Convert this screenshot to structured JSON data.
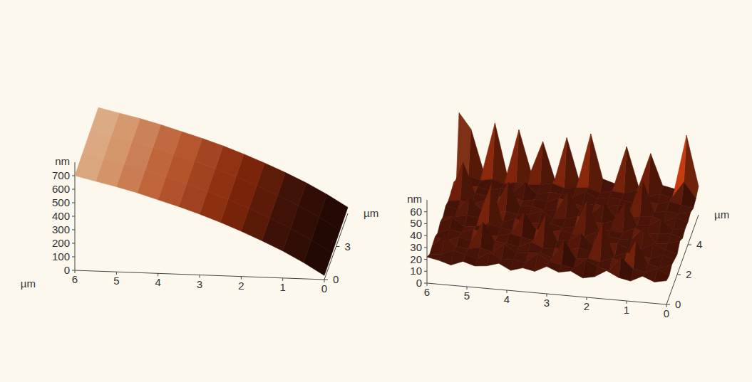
{
  "chart_data": [
    {
      "type": "surface",
      "x_label": "µm",
      "y_label": "µm",
      "z_label": "nm",
      "x": [
        0,
        0.5,
        1,
        1.5,
        2,
        2.5,
        3,
        3.5,
        4,
        4.5,
        5,
        5.5,
        6
      ],
      "y": [
        0,
        2,
        4,
        6
      ],
      "z": [
        [
          30,
          120,
          200,
          270,
          335,
          395,
          450,
          500,
          545,
          590,
          630,
          665,
          700
        ],
        [
          35,
          125,
          205,
          275,
          340,
          400,
          455,
          505,
          550,
          595,
          635,
          670,
          705
        ],
        [
          40,
          130,
          210,
          280,
          345,
          405,
          460,
          510,
          555,
          600,
          640,
          675,
          710
        ],
        [
          45,
          135,
          215,
          285,
          350,
          410,
          465,
          515,
          560,
          605,
          645,
          680,
          715
        ]
      ],
      "xlim": [
        0,
        6
      ],
      "xticks": [
        0,
        1,
        2,
        3,
        4,
        5,
        6
      ],
      "ylim": [
        0,
        6
      ],
      "yticks": [
        0,
        3
      ],
      "zlim": [
        0,
        800
      ],
      "zticks": [
        0,
        100,
        200,
        300,
        400,
        500,
        600,
        700
      ]
    },
    {
      "type": "surface",
      "y_label": "µm",
      "z_label": "nm",
      "x": [
        0,
        0.3,
        0.6,
        0.9,
        1.2,
        1.5,
        1.8,
        2.1,
        2.4,
        2.7,
        3,
        3.3,
        3.6,
        3.9,
        4.2,
        4.5,
        4.8,
        5.1,
        5.4,
        5.7,
        6
      ],
      "y": [
        0,
        0.5,
        1,
        1.5,
        2,
        2.5,
        3,
        3.5,
        4,
        4.5,
        5,
        5.5,
        6
      ],
      "z": [
        [
          20,
          18,
          22,
          17,
          19,
          24,
          18,
          16,
          21,
          19,
          23,
          18,
          20,
          17,
          22,
          19,
          18,
          21,
          17,
          20,
          22
        ],
        [
          18,
          23,
          19,
          21,
          30,
          18,
          20,
          25,
          17,
          19,
          21,
          27,
          18,
          20,
          19,
          24,
          18,
          20,
          23,
          19,
          18
        ],
        [
          21,
          17,
          20,
          38,
          19,
          22,
          18,
          20,
          19,
          33,
          18,
          21,
          20,
          19,
          26,
          18,
          21,
          19,
          20,
          28,
          19
        ],
        [
          19,
          22,
          18,
          20,
          21,
          17,
          45,
          19,
          22,
          18,
          20,
          19,
          23,
          18,
          20,
          21,
          36,
          19,
          22,
          18,
          20
        ],
        [
          17,
          20,
          24,
          19,
          18,
          22,
          20,
          18,
          27,
          21,
          19,
          40,
          18,
          20,
          22,
          19,
          18,
          23,
          19,
          21,
          17
        ],
        [
          22,
          19,
          18,
          31,
          20,
          19,
          21,
          23,
          18,
          20,
          22,
          19,
          21,
          34,
          18,
          20,
          22,
          19,
          18,
          25,
          20
        ],
        [
          18,
          21,
          20,
          19,
          23,
          18,
          19,
          20,
          42,
          19,
          18,
          21,
          20,
          19,
          22,
          18,
          48,
          20,
          21,
          19,
          18
        ],
        [
          20,
          18,
          26,
          20,
          19,
          37,
          21,
          18,
          20,
          22,
          19,
          18,
          24,
          20,
          19,
          21,
          18,
          20,
          30,
          19,
          21
        ],
        [
          19,
          22,
          18,
          21,
          20,
          19,
          18,
          29,
          19,
          20,
          35,
          19,
          18,
          21,
          20,
          39,
          19,
          22,
          18,
          20,
          19
        ],
        [
          21,
          19,
          20,
          18,
          44,
          20,
          22,
          19,
          21,
          18,
          20,
          23,
          19,
          20,
          18,
          21,
          20,
          19,
          21,
          46,
          20
        ],
        [
          18,
          20,
          22,
          19,
          21,
          18,
          20,
          21,
          19,
          24,
          19,
          20,
          21,
          18,
          27,
          19,
          21,
          18,
          20,
          19,
          22
        ],
        [
          20,
          33,
          19,
          21,
          18,
          22,
          19,
          20,
          18,
          21,
          20,
          19,
          22,
          20,
          19,
          20,
          18,
          21,
          19,
          22,
          18
        ],
        [
          24,
          66,
          20,
          22,
          48,
          19,
          52,
          20,
          23,
          60,
          21,
          55,
          19,
          50,
          24,
          58,
          20,
          62,
          22,
          55,
          68
        ]
      ],
      "xlim": [
        0,
        6
      ],
      "xticks": [
        0,
        1,
        2,
        3,
        4,
        5,
        6
      ],
      "ylim": [
        0,
        6
      ],
      "yticks": [
        0,
        2,
        4
      ],
      "zlim": [
        0,
        70
      ],
      "zticks": [
        0,
        10,
        20,
        30,
        40,
        50,
        60
      ]
    }
  ]
}
